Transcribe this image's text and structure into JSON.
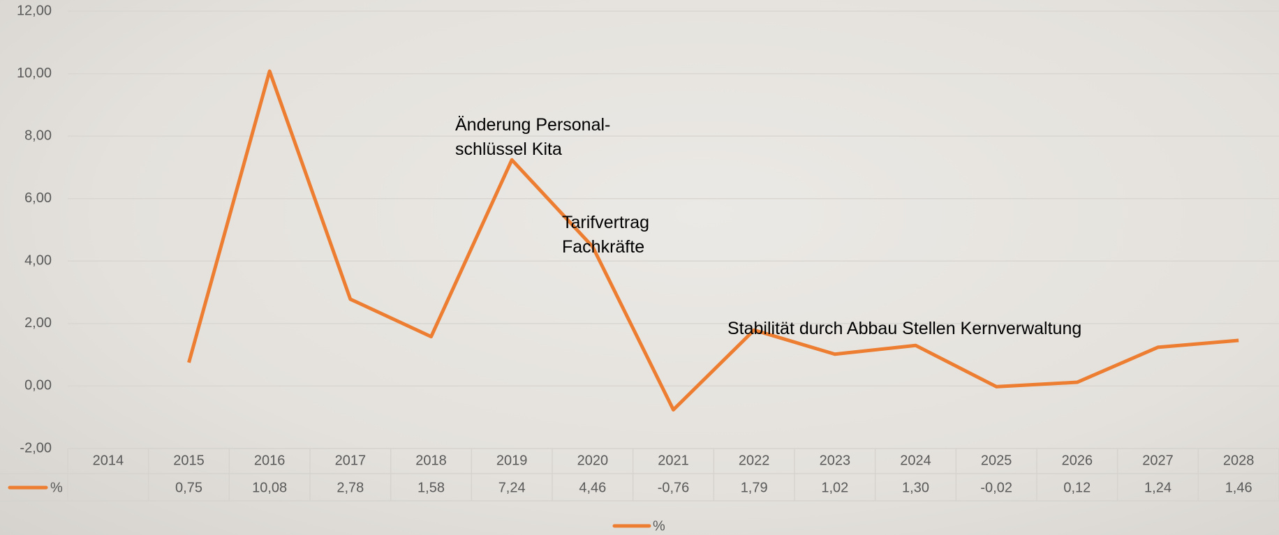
{
  "chart_data": {
    "type": "line",
    "categories": [
      "2014",
      "2015",
      "2016",
      "2017",
      "2018",
      "2019",
      "2020",
      "2021",
      "2022",
      "2023",
      "2024",
      "2025",
      "2026",
      "2027",
      "2028"
    ],
    "series": [
      {
        "name": "%",
        "color": "#ed7d31",
        "values": [
          null,
          0.75,
          10.08,
          2.78,
          1.58,
          7.24,
          4.46,
          -0.76,
          1.79,
          1.02,
          1.3,
          -0.02,
          0.12,
          1.24,
          1.46
        ],
        "value_labels": [
          null,
          "0,75",
          "10,08",
          "2,78",
          "1,58",
          "7,24",
          "4,46",
          "-0,76",
          "1,79",
          "1,02",
          "1,30",
          "-0,02",
          "0,12",
          "1,24",
          "1,46"
        ]
      }
    ],
    "ylim": [
      -2,
      12
    ],
    "yticks": [
      {
        "value": -2,
        "label": "-2,00"
      },
      {
        "value": 0,
        "label": "0,00"
      },
      {
        "value": 2,
        "label": "2,00"
      },
      {
        "value": 4,
        "label": "4,00"
      },
      {
        "value": 6,
        "label": "6,00"
      },
      {
        "value": 8,
        "label": "8,00"
      },
      {
        "value": 10,
        "label": "10,00"
      },
      {
        "value": 12,
        "label": "12,00"
      }
    ],
    "grid": true,
    "legend": "bottom",
    "annotations": [
      {
        "text": [
          "Änderung Personal-",
          "schlüssel Kita"
        ]
      },
      {
        "text": [
          "Tarifvertrag",
          "Fachkräfte"
        ]
      },
      {
        "text": [
          "Stabilität durch Abbau Stellen Kernverwaltung"
        ]
      }
    ]
  }
}
